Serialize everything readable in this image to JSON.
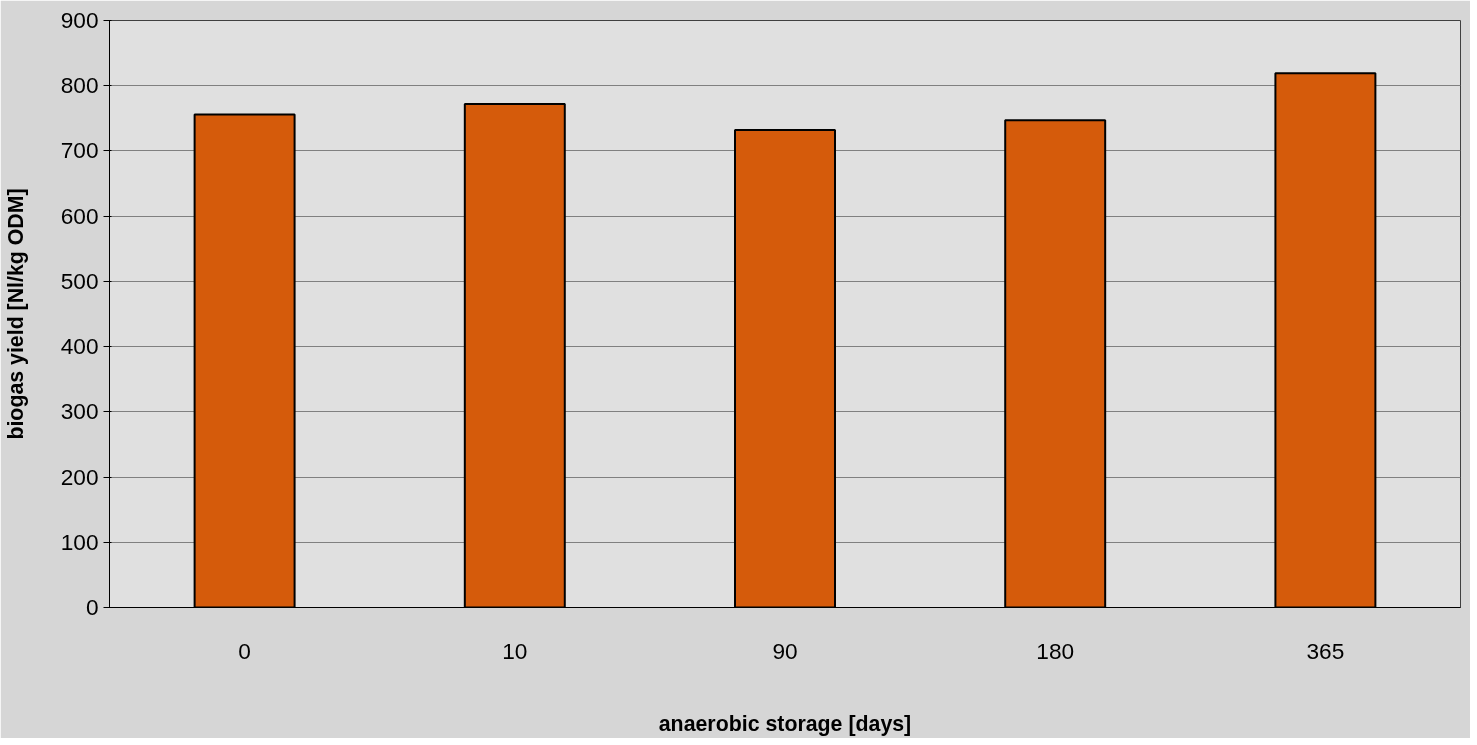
{
  "chart_data": {
    "type": "bar",
    "xlabel": "anaerobic storage [days]",
    "ylabel": "biogas yield [Nl/kg ODM]",
    "categories": [
      "0",
      "10",
      "90",
      "180",
      "365"
    ],
    "values": [
      756,
      772,
      732,
      747,
      819
    ],
    "color": "#d55b0b",
    "ylim": [
      0,
      900
    ],
    "yticks": [
      0,
      100,
      200,
      300,
      400,
      500,
      600,
      700,
      800,
      900
    ],
    "grid": "y"
  }
}
